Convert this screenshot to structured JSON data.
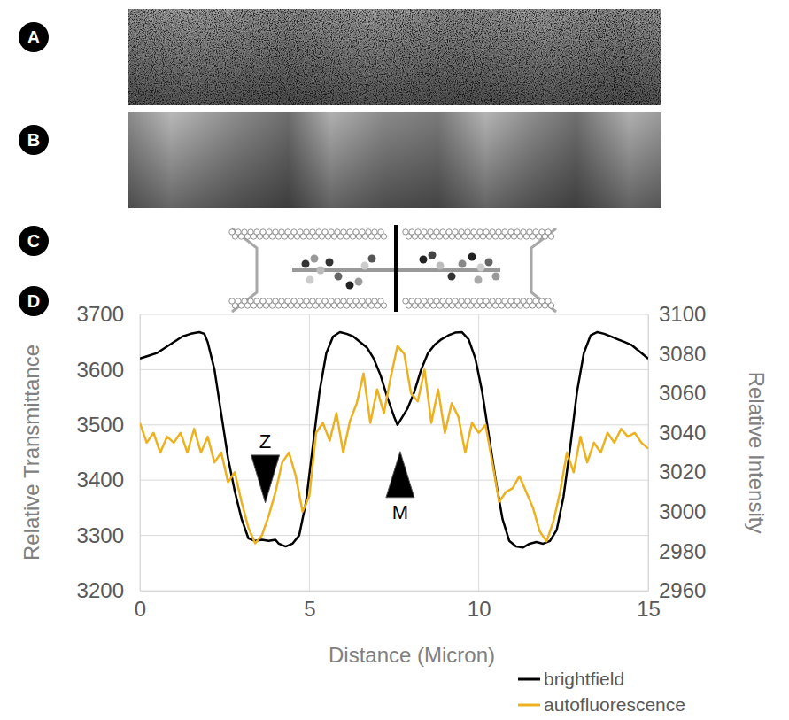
{
  "panel_labels": [
    "A",
    "B",
    "C",
    "D"
  ],
  "chart_data": {
    "type": "line",
    "x_label": "Distance (Micron)",
    "y_label": "Relative Transmittance",
    "y2_label": "Relative Intensity",
    "xlim": [
      0,
      15
    ],
    "xticks": [
      0,
      5,
      10,
      15
    ],
    "ylim": [
      3200,
      3700
    ],
    "yticks": [
      3200,
      3300,
      3400,
      3500,
      3600,
      3700
    ],
    "y2lim": [
      2960,
      3100
    ],
    "y2ticks": [
      2960,
      2980,
      3000,
      3020,
      3040,
      3060,
      3080,
      3100
    ],
    "grid": true,
    "legend": "bottom-right",
    "series": [
      {
        "name": "brightfield",
        "color": "#000000",
        "line_style": "solid",
        "x": [
          0,
          0.25,
          0.5,
          0.75,
          1,
          1.25,
          1.5,
          1.75,
          1.9,
          2,
          2.2,
          2.4,
          2.6,
          2.8,
          3,
          3.2,
          3.4,
          3.6,
          3.8,
          4,
          4.1,
          4.3,
          4.5,
          4.7,
          4.9,
          5.1,
          5.3,
          5.5,
          5.7,
          5.9,
          6.1,
          6.3,
          6.5,
          6.7,
          6.9,
          7.1,
          7.3,
          7.5,
          7.6,
          7.7,
          7.9,
          8.1,
          8.3,
          8.5,
          8.7,
          8.9,
          9.1,
          9.3,
          9.5,
          9.7,
          9.9,
          10.1,
          10.3,
          10.5,
          10.7,
          10.9,
          11.1,
          11.3,
          11.5,
          11.7,
          11.9,
          12.1,
          12.3,
          12.5,
          12.7,
          12.9,
          13.1,
          13.3,
          13.5,
          13.7,
          13.9,
          14.1,
          14.3,
          14.5,
          14.7,
          14.9,
          15
        ],
        "values": [
          3620,
          3625,
          3630,
          3640,
          3650,
          3660,
          3665,
          3668,
          3665,
          3650,
          3600,
          3520,
          3440,
          3380,
          3330,
          3295,
          3290,
          3292,
          3290,
          3292,
          3285,
          3280,
          3285,
          3300,
          3360,
          3460,
          3560,
          3630,
          3660,
          3668,
          3665,
          3660,
          3650,
          3640,
          3620,
          3590,
          3550,
          3515,
          3500,
          3510,
          3530,
          3560,
          3600,
          3630,
          3645,
          3655,
          3662,
          3667,
          3668,
          3655,
          3620,
          3560,
          3480,
          3400,
          3330,
          3290,
          3280,
          3278,
          3285,
          3288,
          3285,
          3290,
          3310,
          3370,
          3460,
          3560,
          3630,
          3662,
          3668,
          3665,
          3660,
          3655,
          3650,
          3645,
          3635,
          3625,
          3620
        ]
      },
      {
        "name": "autofluorescence",
        "color": "#edb120",
        "line_style": "solid",
        "axis": "y2",
        "x": [
          0,
          0.2,
          0.4,
          0.6,
          0.8,
          1,
          1.2,
          1.4,
          1.6,
          1.8,
          2,
          2.2,
          2.4,
          2.6,
          2.8,
          3,
          3.2,
          3.4,
          3.6,
          3.8,
          4,
          4.2,
          4.4,
          4.6,
          4.8,
          5,
          5.2,
          5.4,
          5.6,
          5.8,
          6,
          6.2,
          6.4,
          6.6,
          6.8,
          7,
          7.2,
          7.4,
          7.6,
          7.8,
          8,
          8.2,
          8.4,
          8.6,
          8.8,
          9,
          9.2,
          9.4,
          9.6,
          9.8,
          10,
          10.2,
          10.4,
          10.6,
          10.8,
          11,
          11.2,
          11.4,
          11.6,
          11.8,
          12,
          12.2,
          12.4,
          12.6,
          12.8,
          13,
          13.2,
          13.4,
          13.6,
          13.8,
          14,
          14.2,
          14.4,
          14.6,
          14.8,
          15
        ],
        "values": [
          3045,
          3035,
          3040,
          3030,
          3038,
          3035,
          3040,
          3030,
          3042,
          3030,
          3038,
          3025,
          3030,
          3015,
          3020,
          3005,
          2992,
          2984,
          2988,
          2998,
          3010,
          3025,
          3030,
          3018,
          3000,
          3008,
          3040,
          3045,
          3036,
          3050,
          3030,
          3046,
          3055,
          3070,
          3045,
          3062,
          3050,
          3068,
          3084,
          3080,
          3060,
          3056,
          3072,
          3045,
          3062,
          3040,
          3055,
          3048,
          3030,
          3045,
          3040,
          3044,
          3025,
          3005,
          3010,
          3012,
          3018,
          3010,
          3002,
          2990,
          2985,
          2995,
          3010,
          3030,
          3020,
          3038,
          3025,
          3035,
          3030,
          3040,
          3035,
          3042,
          3038,
          3040,
          3035,
          3032
        ]
      }
    ],
    "annotations": [
      {
        "text": "Z",
        "x": 3.7,
        "y": 3471,
        "arrow_y": 3359
      },
      {
        "text": "M",
        "x": 7.68,
        "y": 3343,
        "arrow_y": 3452
      }
    ]
  }
}
